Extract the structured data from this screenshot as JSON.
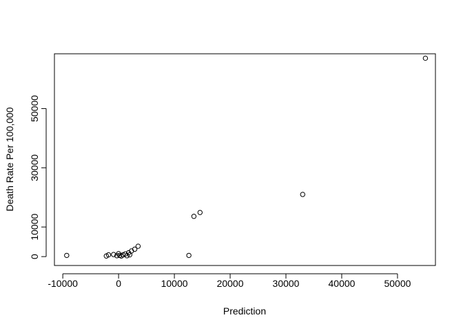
{
  "chart_data": {
    "type": "scatter",
    "xlabel": "Prediction",
    "ylabel": "Death Rate Per 100,000",
    "xlim": [
      -11500,
      56800
    ],
    "ylim": [
      -3000,
      68500
    ],
    "x_ticks": [
      -10000,
      0,
      10000,
      20000,
      30000,
      40000,
      50000
    ],
    "x_tick_labels": [
      "-10000",
      "0",
      "10000",
      "20000",
      "30000",
      "40000",
      "50000"
    ],
    "y_ticks": [
      0,
      10000,
      30000,
      50000
    ],
    "y_tick_labels": [
      "0",
      "10000",
      "30000",
      "50000"
    ],
    "grid": false,
    "marker": "open-circle",
    "points": [
      {
        "x": -9300,
        "y": 400
      },
      {
        "x": -2200,
        "y": 200
      },
      {
        "x": -1800,
        "y": 600
      },
      {
        "x": -900,
        "y": 700
      },
      {
        "x": -300,
        "y": 300
      },
      {
        "x": 0,
        "y": 1000
      },
      {
        "x": 200,
        "y": 400
      },
      {
        "x": 500,
        "y": 200
      },
      {
        "x": 800,
        "y": 600
      },
      {
        "x": 1200,
        "y": 900
      },
      {
        "x": 1500,
        "y": 300
      },
      {
        "x": 1800,
        "y": 1300
      },
      {
        "x": 2000,
        "y": 600
      },
      {
        "x": 2300,
        "y": 1900
      },
      {
        "x": 2900,
        "y": 2500
      },
      {
        "x": 3500,
        "y": 3500
      },
      {
        "x": 12600,
        "y": 400
      },
      {
        "x": 13500,
        "y": 13600
      },
      {
        "x": 14600,
        "y": 14900
      },
      {
        "x": 33000,
        "y": 21000
      },
      {
        "x": 55000,
        "y": 67000
      }
    ]
  }
}
